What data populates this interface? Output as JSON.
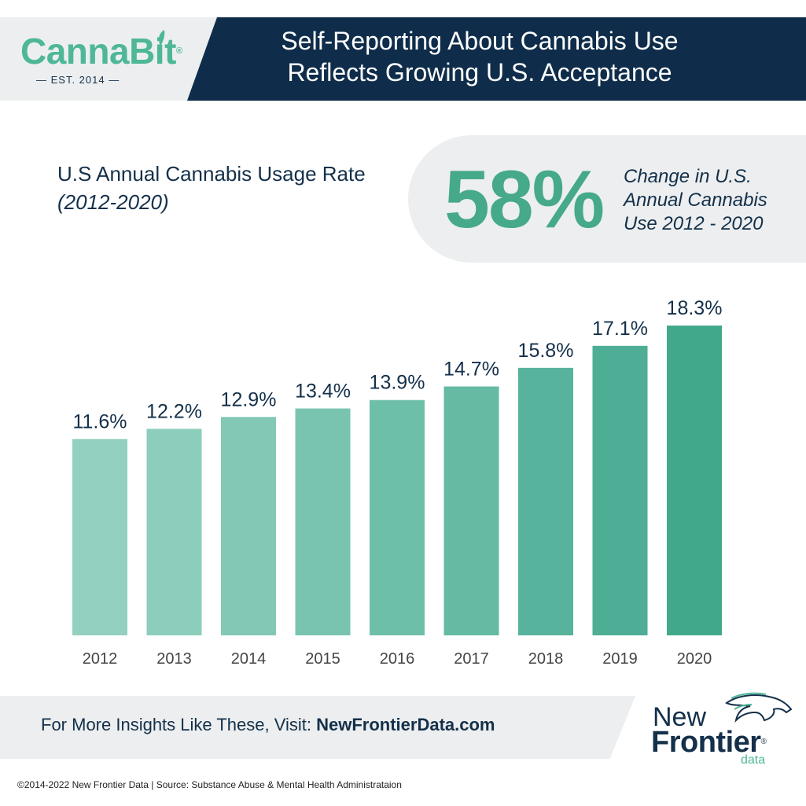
{
  "header": {
    "logo_text": "CannaBit",
    "logo_reg": "®",
    "logo_est": "— EST. 2014 —",
    "title_line1": "Self-Reporting About Cannabis Use",
    "title_line2": "Reflects Growing U.S. Acceptance"
  },
  "subtitle": {
    "heading": "U.S Annual Cannabis Usage Rate",
    "period": "(2012-2020)"
  },
  "callout": {
    "value": "58%",
    "line1": "Change in U.S.",
    "line2": "Annual Cannabis",
    "line3": "Use 2012 - 2020"
  },
  "chart_data": {
    "type": "bar",
    "title": "U.S Annual Cannabis Usage Rate",
    "xlabel": "",
    "ylabel": "",
    "categories": [
      "2012",
      "2013",
      "2014",
      "2015",
      "2016",
      "2017",
      "2018",
      "2019",
      "2020"
    ],
    "values": [
      11.6,
      12.2,
      12.9,
      13.4,
      13.9,
      14.7,
      15.8,
      17.1,
      18.3
    ],
    "value_labels": [
      "11.6%",
      "12.2%",
      "12.9%",
      "13.4%",
      "13.9%",
      "14.7%",
      "15.8%",
      "17.1%",
      "18.3%"
    ],
    "ylim": [
      0,
      18.3
    ],
    "grid": false,
    "legend": "none",
    "colors": [
      "#93d0bf",
      "#8ccdbb",
      "#82c8b5",
      "#79c4b0",
      "#6ebfa9",
      "#64baa3",
      "#57b39b",
      "#4dae95",
      "#42a88c"
    ]
  },
  "footer": {
    "cta_prefix": "For More Insights Like These, Visit: ",
    "cta_link": "NewFrontierData.com",
    "brand_new": "New",
    "brand_frontier": "Frontier",
    "brand_reg": "®",
    "brand_data": "data",
    "copyright": "©2014-2022  New Frontier Data | Source: Substance Abuse & Mental Health Administrataion"
  },
  "colors": {
    "navy": "#0f2d4a",
    "teal": "#4eb798",
    "light_gray": "#eceeef"
  }
}
